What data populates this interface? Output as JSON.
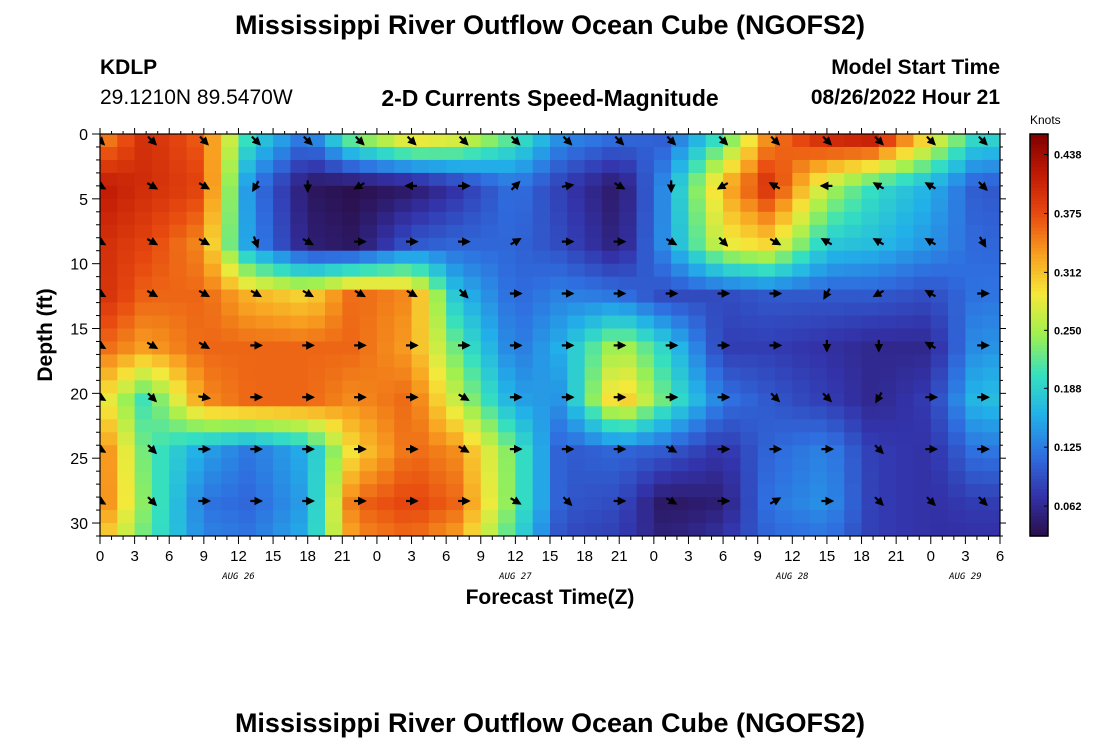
{
  "header": {
    "title_top": "Mississippi River Outflow Ocean Cube (NGOFS2)",
    "title_bottom": "Mississippi River Outflow Ocean Cube (NGOFS2)",
    "station_id": "KDLP",
    "station_coords": "29.1210N  89.5470W",
    "subtitle": "2-D Currents Speed-Magnitude",
    "start_label": "Model Start Time",
    "start_value": "08/26/2022 Hour 21"
  },
  "chart_data": {
    "type": "heatmap",
    "title": "2-D Currents Speed-Magnitude",
    "xlabel": "Forecast Time(Z)",
    "ylabel": "Depth (ft)",
    "x_unit": "hours since 08/26/2022 00Z",
    "xlim": [
      0,
      78
    ],
    "ylim": [
      0,
      31
    ],
    "y_inverted": true,
    "x_ticks": [
      0,
      3,
      6,
      9,
      12,
      15,
      18,
      21,
      24,
      27,
      30,
      33,
      36,
      39,
      42,
      45,
      48,
      51,
      54,
      57,
      60,
      63,
      66,
      69,
      72,
      75,
      78
    ],
    "x_tick_labels": [
      "0",
      "3",
      "6",
      "9",
      "12",
      "15",
      "18",
      "21",
      "0",
      "3",
      "6",
      "9",
      "12",
      "15",
      "18",
      "21",
      "0",
      "3",
      "6",
      "9",
      "12",
      "15",
      "18",
      "21",
      "0",
      "3",
      "6"
    ],
    "date_labels": [
      {
        "x": 12,
        "label": "AUG 26"
      },
      {
        "x": 36,
        "label": "AUG 27"
      },
      {
        "x": 60,
        "label": "AUG 28"
      },
      {
        "x": 75,
        "label": "AUG 29"
      }
    ],
    "y_ticks": [
      0,
      5,
      10,
      15,
      20,
      25,
      30
    ],
    "colorbar": {
      "unit": "Knots",
      "ticks": [
        0.062,
        0.125,
        0.188,
        0.25,
        0.312,
        0.375,
        0.438
      ],
      "range": [
        0.03,
        0.46
      ],
      "colors": [
        "#2a0f4a",
        "#3333aa",
        "#2f6fe0",
        "#22b0e8",
        "#35e0c0",
        "#9ef050",
        "#f5e93a",
        "#f8a020",
        "#e84a10",
        "#c01a05",
        "#800000"
      ]
    },
    "grid_x": [
      0,
      4,
      9,
      13,
      18,
      22,
      27,
      31,
      36,
      40,
      45,
      49,
      54,
      58,
      63,
      67,
      72,
      76
    ],
    "grid_depth": [
      0,
      4,
      8.5,
      12.5,
      16.5,
      20.5,
      24.5,
      28.5,
      31
    ],
    "speed_knots": [
      [
        0.33,
        0.4,
        0.36,
        0.2,
        0.12,
        0.25,
        0.32,
        0.3,
        0.22,
        0.14,
        0.12,
        0.1,
        0.2,
        0.34,
        0.42,
        0.44,
        0.3,
        0.2
      ],
      [
        0.42,
        0.4,
        0.38,
        0.13,
        0.04,
        0.03,
        0.04,
        0.07,
        0.12,
        0.08,
        0.04,
        0.14,
        0.32,
        0.4,
        0.26,
        0.2,
        0.16,
        0.1
      ],
      [
        0.4,
        0.38,
        0.34,
        0.14,
        0.05,
        0.04,
        0.1,
        0.11,
        0.11,
        0.09,
        0.05,
        0.14,
        0.28,
        0.3,
        0.18,
        0.17,
        0.14,
        0.11
      ],
      [
        0.4,
        0.36,
        0.36,
        0.32,
        0.3,
        0.36,
        0.34,
        0.17,
        0.11,
        0.13,
        0.12,
        0.09,
        0.09,
        0.1,
        0.1,
        0.1,
        0.09,
        0.12
      ],
      [
        0.36,
        0.33,
        0.36,
        0.36,
        0.36,
        0.36,
        0.33,
        0.22,
        0.12,
        0.16,
        0.26,
        0.19,
        0.08,
        0.08,
        0.07,
        0.06,
        0.06,
        0.14
      ],
      [
        0.3,
        0.2,
        0.34,
        0.36,
        0.36,
        0.34,
        0.36,
        0.26,
        0.15,
        0.14,
        0.32,
        0.22,
        0.12,
        0.1,
        0.08,
        0.06,
        0.08,
        0.17
      ],
      [
        0.36,
        0.22,
        0.15,
        0.12,
        0.16,
        0.3,
        0.36,
        0.34,
        0.22,
        0.1,
        0.11,
        0.1,
        0.07,
        0.11,
        0.13,
        0.08,
        0.07,
        0.12
      ],
      [
        0.36,
        0.23,
        0.12,
        0.11,
        0.15,
        0.36,
        0.38,
        0.36,
        0.22,
        0.1,
        0.09,
        0.04,
        0.05,
        0.12,
        0.14,
        0.08,
        0.07,
        0.08
      ],
      [
        0.32,
        0.22,
        0.13,
        0.12,
        0.16,
        0.34,
        0.36,
        0.33,
        0.2,
        0.09,
        0.08,
        0.05,
        0.07,
        0.11,
        0.12,
        0.08,
        0.07,
        0.07
      ]
    ],
    "arrow_times": [
      0,
      4.5,
      9,
      13.5,
      18,
      22.5,
      27,
      31.5,
      36,
      40.5,
      45,
      49.5,
      54,
      58.5,
      63,
      67.5,
      72,
      76.5
    ],
    "arrow_depths": [
      0.5,
      4,
      8.3,
      12.3,
      16.3,
      20.3,
      24.3,
      28.3
    ],
    "arrow_dirs_deg": [
      [
        135,
        135,
        135,
        135,
        135,
        135,
        135,
        135,
        135,
        135,
        135,
        135,
        135,
        135,
        135,
        135,
        135,
        135
      ],
      [
        120,
        120,
        120,
        210,
        180,
        240,
        270,
        90,
        45,
        80,
        120,
        180,
        240,
        300,
        270,
        300,
        300,
        135
      ],
      [
        120,
        120,
        120,
        160,
        120,
        90,
        90,
        90,
        60,
        90,
        90,
        120,
        135,
        120,
        300,
        300,
        300,
        150
      ],
      [
        120,
        120,
        120,
        120,
        120,
        120,
        120,
        135,
        90,
        90,
        90,
        90,
        90,
        90,
        210,
        240,
        300,
        90
      ],
      [
        120,
        120,
        120,
        90,
        90,
        90,
        90,
        90,
        90,
        90,
        90,
        90,
        90,
        90,
        180,
        180,
        300,
        90
      ],
      [
        120,
        135,
        100,
        90,
        90,
        90,
        90,
        120,
        90,
        90,
        90,
        90,
        90,
        135,
        135,
        210,
        90,
        90
      ],
      [
        120,
        135,
        90,
        90,
        90,
        90,
        90,
        120,
        90,
        90,
        90,
        120,
        90,
        90,
        90,
        135,
        90,
        90
      ],
      [
        120,
        135,
        90,
        90,
        90,
        90,
        90,
        90,
        120,
        135,
        90,
        120,
        90,
        60,
        90,
        135,
        135,
        135
      ]
    ]
  }
}
